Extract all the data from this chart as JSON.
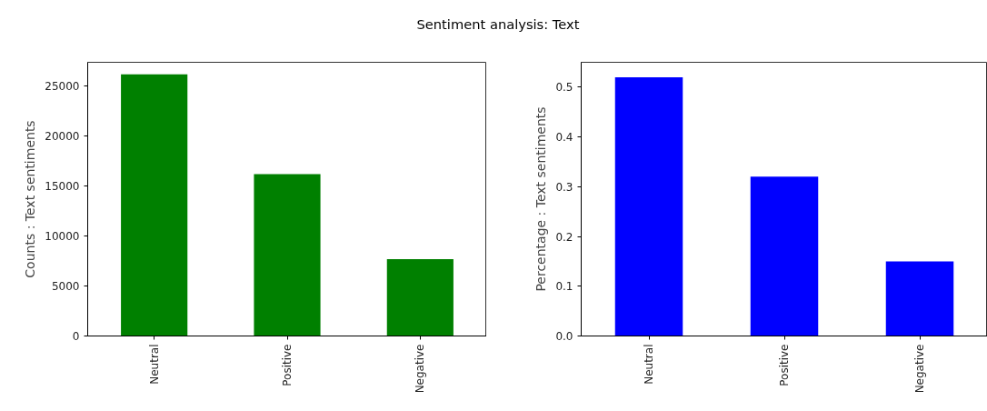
{
  "chart_data": [
    {
      "type": "bar",
      "title": "Sentiment analysis: Text",
      "ylabel": "Counts : Text sentiments",
      "categories": [
        "Neutral",
        "Positive",
        "Negative"
      ],
      "values": [
        26200,
        16200,
        7700
      ],
      "color": "#008000",
      "ylim": [
        0,
        27400
      ],
      "yticks": [
        0,
        5000,
        10000,
        15000,
        20000,
        25000
      ],
      "grid": false
    },
    {
      "type": "bar",
      "ylabel": "Percentage : Text sentiments",
      "categories": [
        "Neutral",
        "Positive",
        "Negative"
      ],
      "values": [
        0.52,
        0.32,
        0.15
      ],
      "color": "#0000ff",
      "ylim": [
        0,
        0.55
      ],
      "yticks": [
        {
          "value": 0,
          "label": "0.0"
        },
        0.1,
        0.2,
        0.3,
        0.4,
        0.5
      ],
      "grid": false
    }
  ]
}
